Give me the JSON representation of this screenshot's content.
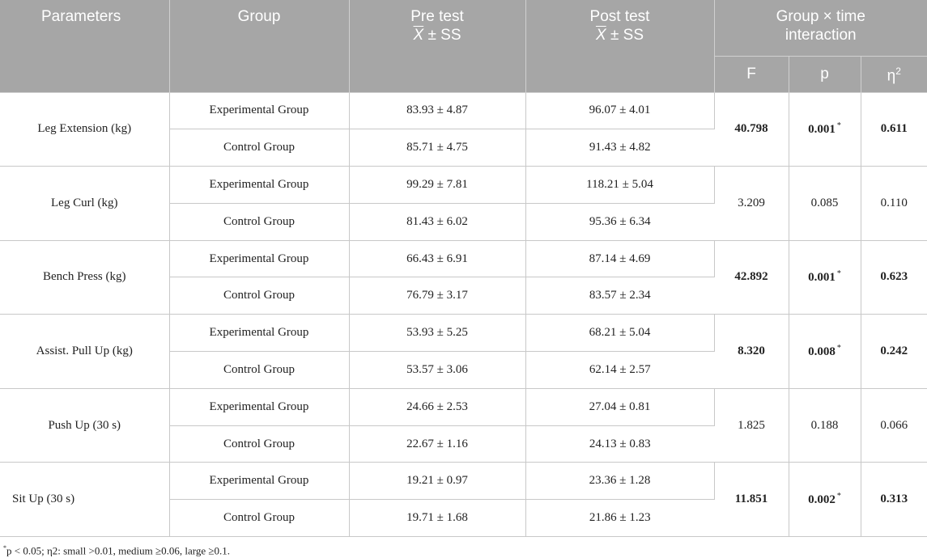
{
  "header": {
    "parameters": "Parameters",
    "group": "Group",
    "pre_main": "Pre test",
    "pre_xbar": "X",
    "pre_stat": " ± SS",
    "post_main": "Post test",
    "post_xbar": "X",
    "post_stat": " ± SS",
    "interaction": "Group × time interaction",
    "f": "F",
    "p": "p",
    "eta": "η",
    "eta_sup": "2"
  },
  "rows": [
    {
      "parameter": "Leg Extension (kg)",
      "f": "40.798",
      "p": "0.001",
      "p_mark": "*",
      "eta": "0.611",
      "bold": true,
      "exp": {
        "group": "Experimental Group",
        "pre": "83.93 ± 4.87",
        "post": "96.07 ± 4.01"
      },
      "ctl": {
        "group": "Control Group",
        "pre": "85.71 ± 4.75",
        "post": "91.43 ± 4.82"
      }
    },
    {
      "parameter": "Leg Curl (kg)",
      "f": "3.209",
      "p": "0.085",
      "p_mark": "",
      "eta": "0.110",
      "bold": false,
      "exp": {
        "group": "Experimental Group",
        "pre": "99.29 ± 7.81",
        "post": "118.21 ± 5.04"
      },
      "ctl": {
        "group": "Control Group",
        "pre": "81.43 ± 6.02",
        "post": "95.36 ± 6.34"
      }
    },
    {
      "parameter": "Bench Press (kg)",
      "f": "42.892",
      "p": "0.001",
      "p_mark": "*",
      "eta": "0.623",
      "bold": true,
      "exp": {
        "group": "Experimental Group",
        "pre": "66.43 ± 6.91",
        "post": "87.14 ± 4.69"
      },
      "ctl": {
        "group": "Control Group",
        "pre": "76.79 ± 3.17",
        "post": "83.57 ± 2.34"
      }
    },
    {
      "parameter": "Assist. Pull Up (kg)",
      "f": "8.320",
      "p": "0.008",
      "p_mark": "*",
      "eta": "0.242",
      "bold": true,
      "exp": {
        "group": "Experimental Group",
        "pre": "53.93 ± 5.25",
        "post": "68.21 ± 5.04"
      },
      "ctl": {
        "group": "Control Group",
        "pre": "53.57 ± 3.06",
        "post": "62.14 ± 2.57"
      }
    },
    {
      "parameter": "Push Up (30 s)",
      "f": "1.825",
      "p": "0.188",
      "p_mark": "",
      "eta": "0.066",
      "bold": false,
      "exp": {
        "group": "Experimental Group",
        "pre": "24.66 ± 2.53",
        "post": "27.04 ± 0.81"
      },
      "ctl": {
        "group": "Control Group",
        "pre": "22.67 ± 1.16",
        "post": "24.13 ± 0.83"
      }
    },
    {
      "parameter": "Sit Up (30 s)",
      "f": "11.851",
      "p": "0.002",
      "p_mark": "*",
      "eta": "0.313",
      "bold": true,
      "exp": {
        "group": "Experimental Group",
        "pre": "19.21 ± 0.97",
        "post": "23.36 ± 1.28"
      },
      "ctl": {
        "group": "Control Group",
        "pre": "19.71 ± 1.68",
        "post": "21.86 ± 1.23"
      }
    }
  ],
  "footnote": {
    "mark": "*",
    "text": "p < 0.05; η2: small >0.01, medium ≥0.06, large ≥0.1."
  }
}
